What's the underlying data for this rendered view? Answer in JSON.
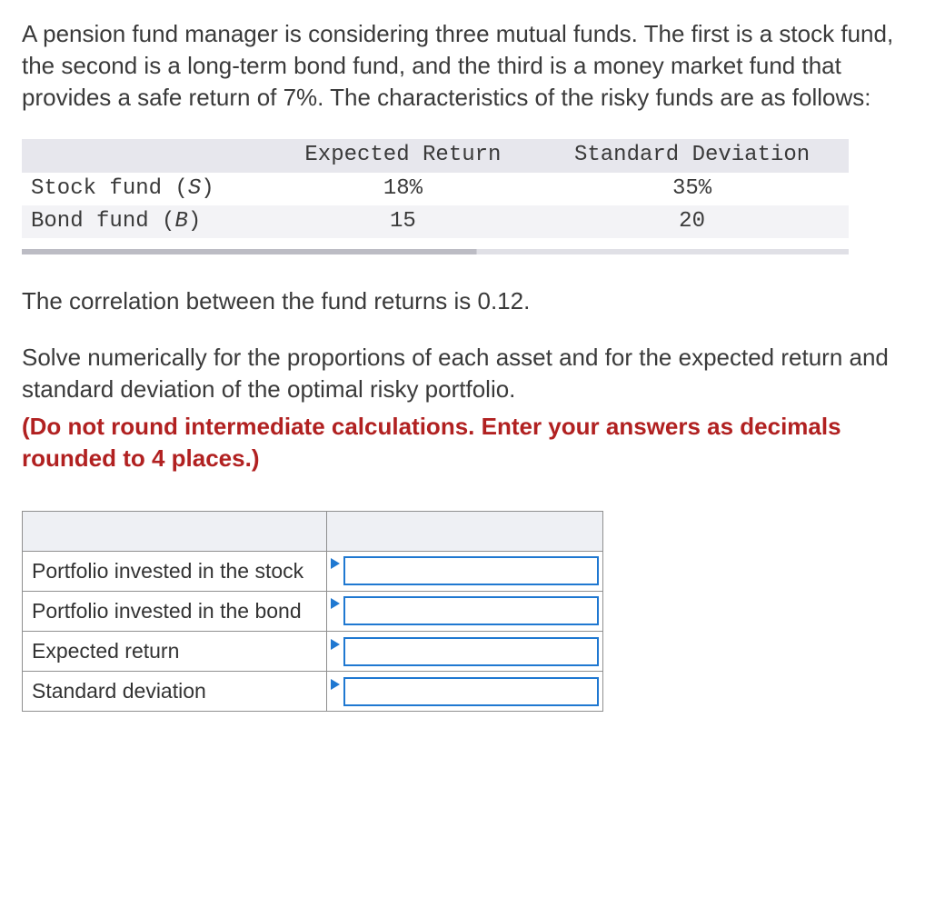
{
  "problem": {
    "intro": "A pension fund manager is considering three mutual funds. The first is a stock fund, the second is a long-term bond fund, and the third is a money market fund that provides a safe return of 7%. The characteristics of the risky funds are as follows:",
    "correlation_text": "The correlation between the fund returns is 0.12.",
    "solve_text": "Solve numerically for the proportions of each asset and for the expected return and standard deviation of the optimal risky portfolio.",
    "instruction": "(Do not round intermediate calculations. Enter your answers as decimals rounded to 4 places.)"
  },
  "funds_table": {
    "type": "table",
    "headers": {
      "col1": "",
      "col2": "Expected Return",
      "col3": "Standard Deviation"
    },
    "rows": [
      {
        "label_a": "Stock fund (",
        "label_i": "S",
        "label_b": ")",
        "er": "18%",
        "sd": "35%"
      },
      {
        "label_a": "Bond fund (",
        "label_i": "B",
        "label_b": ")",
        "er": "15",
        "sd": "20"
      }
    ],
    "colors": {
      "header_bg": "#e7e7ed",
      "alt_row_bg": "#f3f3f6",
      "strip_dark": "#bcbcc4",
      "strip_light": "#e0e0e6"
    },
    "font": {
      "family": "Courier New",
      "size_pt": 18
    }
  },
  "answer_table": {
    "rows": [
      {
        "label": "Portfolio invested in the stock",
        "value": ""
      },
      {
        "label": "Portfolio invested in the bond",
        "value": ""
      },
      {
        "label": "Expected return",
        "value": ""
      },
      {
        "label": "Standard deviation",
        "value": ""
      }
    ],
    "colors": {
      "cell_border": "#8f8f8f",
      "input_border": "#1f78d1",
      "triangle": "#1f78d1",
      "blank_bg": "#eef0f4"
    }
  },
  "styling": {
    "body_text_color": "#3a3a3a",
    "instruction_color": "#b12121",
    "body_font_size_pt": 20,
    "background": "#ffffff"
  }
}
